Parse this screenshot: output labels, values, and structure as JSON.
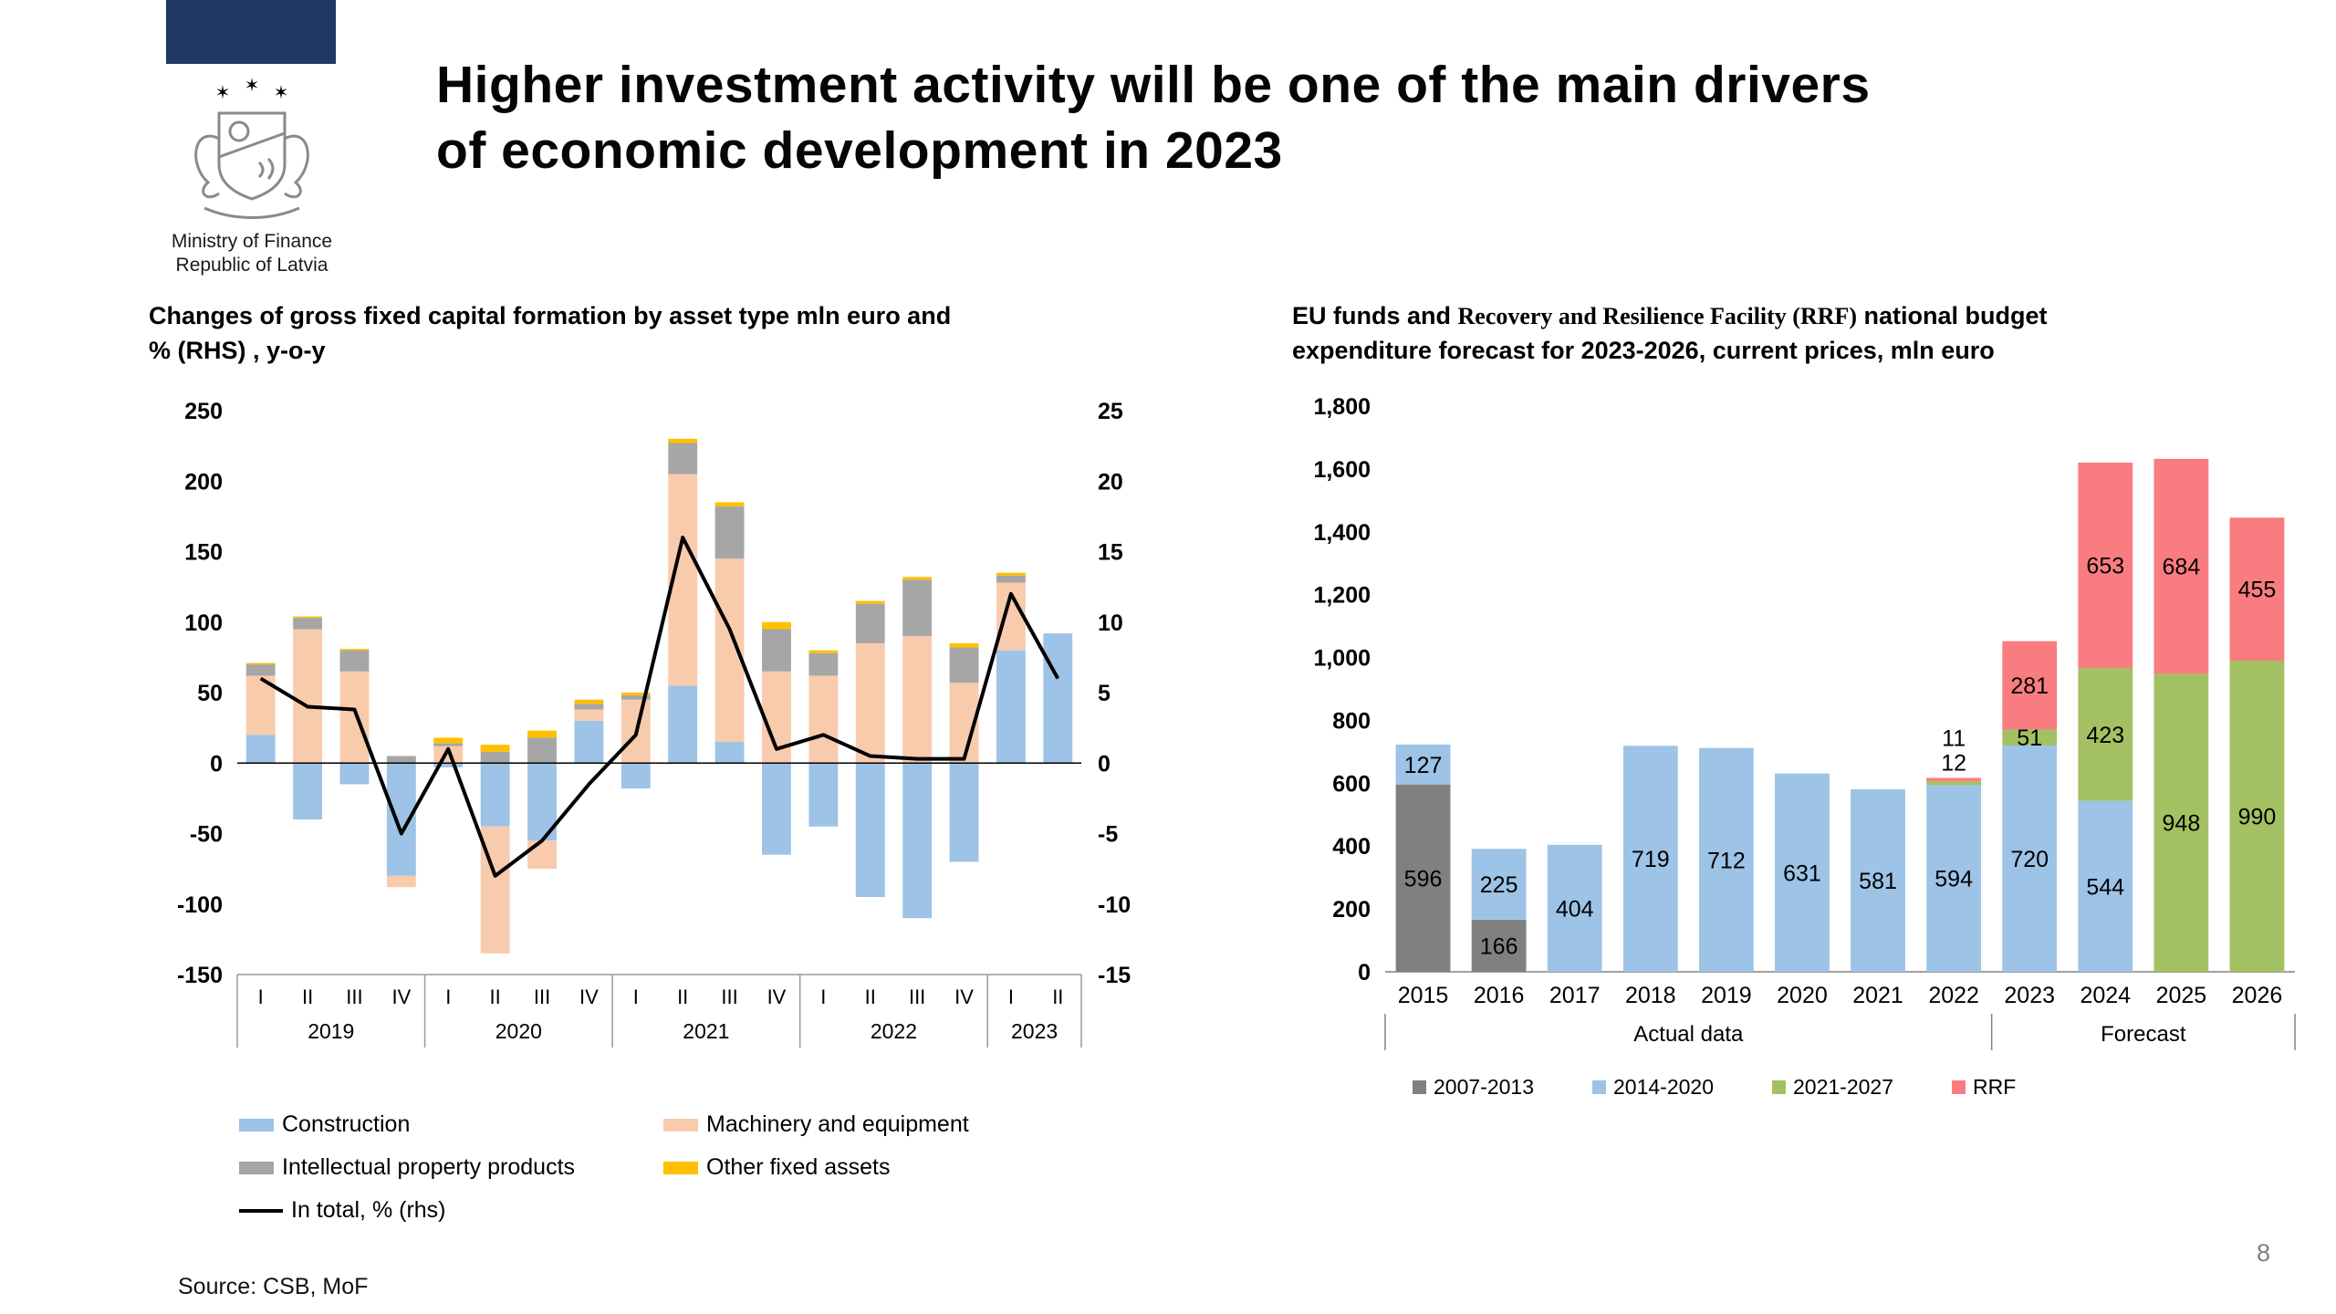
{
  "slide": {
    "title_line1": "Higher investment activity will be one of the main drivers",
    "title_line2": "of economic development in 2023",
    "ministry_line1": "Ministry of Finance",
    "ministry_line2": "Republic of Latvia",
    "flag_color": "#1F3864",
    "source": "Source: CSB, MoF",
    "page_number": "8"
  },
  "chart_data": [
    {
      "id": "gfcf-changes",
      "type": "bar",
      "subtype": "stacked-bar-with-line",
      "title_line1": "Changes of gross fixed capital formation by asset type mln euro and",
      "title_line2": "% (RHS) , y-o-y",
      "categories_quarters": [
        "I",
        "II",
        "III",
        "IV",
        "I",
        "II",
        "III",
        "IV",
        "I",
        "II",
        "III",
        "IV",
        "I",
        "II",
        "III",
        "IV",
        "I",
        "II"
      ],
      "year_groups": [
        {
          "label": "2019",
          "span": 4
        },
        {
          "label": "2020",
          "span": 4
        },
        {
          "label": "2021",
          "span": 4
        },
        {
          "label": "2022",
          "span": 4
        },
        {
          "label": "2023",
          "span": 2
        }
      ],
      "left_axis": {
        "min": -150,
        "max": 250,
        "step": 50,
        "unit": "mln euro"
      },
      "right_axis": {
        "min": -15,
        "max": 25,
        "step": 5,
        "unit": "%"
      },
      "grid": "off",
      "series": [
        {
          "name": "Construction",
          "color": "#9DC3E6",
          "values": [
            20,
            -40,
            -15,
            -80,
            -3,
            -45,
            -55,
            30,
            -18,
            55,
            15,
            -65,
            -45,
            -95,
            -110,
            -70,
            80,
            92
          ]
        },
        {
          "name": "Machinery and equipment",
          "color": "#F8CBAD",
          "values": [
            42,
            95,
            65,
            -8,
            12,
            -90,
            -20,
            8,
            45,
            150,
            130,
            65,
            62,
            85,
            90,
            57,
            48,
            0
          ]
        },
        {
          "name": "Intellectual property products",
          "color": "#A6A6A6",
          "values": [
            8,
            8,
            15,
            5,
            2,
            8,
            18,
            4,
            3,
            22,
            37,
            30,
            16,
            28,
            40,
            25,
            5,
            0
          ]
        },
        {
          "name": "Other fixed assets",
          "color": "#FFC000",
          "values": [
            1,
            1,
            1,
            0,
            4,
            5,
            5,
            3,
            2,
            3,
            3,
            5,
            2,
            2,
            2,
            3,
            2,
            0
          ]
        }
      ],
      "line_series": {
        "name": "In total, % (rhs)",
        "color": "#000000",
        "values": [
          6,
          4,
          3.8,
          -5,
          1,
          -8,
          -5.5,
          -1.5,
          2,
          16,
          9.5,
          1,
          2,
          0.5,
          0.3,
          0.3,
          12,
          6
        ]
      },
      "legend": [
        {
          "name": "Construction",
          "color": "#9DC3E6",
          "type": "rect"
        },
        {
          "name": "Machinery and equipment",
          "color": "#F8CBAD",
          "type": "rect"
        },
        {
          "name": "Intellectual property products",
          "color": "#A6A6A6",
          "type": "rect"
        },
        {
          "name": "Other fixed assets",
          "color": "#FFC000",
          "type": "rect"
        },
        {
          "name": "In total, % (rhs)",
          "color": "#000000",
          "type": "line"
        }
      ]
    },
    {
      "id": "eu-funds-forecast",
      "type": "bar",
      "subtype": "stacked-bar",
      "title_pre": "EU funds and ",
      "title_serif": "Recovery and Resilience Facility (RRF)",
      "title_post": "  national budget",
      "title_line2": "expenditure forecast for 2023-2026, current prices, mln euro",
      "categories": [
        "2015",
        "2016",
        "2017",
        "2018",
        "2019",
        "2020",
        "2021",
        "2022",
        "2023",
        "2024",
        "2025",
        "2026"
      ],
      "y_axis": {
        "min": 0,
        "max": 1800,
        "step": 200
      },
      "grid": "off",
      "series": [
        {
          "name": "2007-2013",
          "color": "#808080",
          "values": [
            596,
            166,
            0,
            0,
            0,
            0,
            0,
            0,
            0,
            0,
            0,
            0
          ]
        },
        {
          "name": "2014-2020",
          "color": "#9DC3E6",
          "values": [
            127,
            225,
            404,
            719,
            712,
            631,
            581,
            594,
            720,
            544,
            0,
            0
          ]
        },
        {
          "name": "2021-2027",
          "color": "#A3C162",
          "values": [
            0,
            0,
            0,
            0,
            0,
            0,
            0,
            12,
            51,
            423,
            948,
            990
          ]
        },
        {
          "name": "RRF",
          "color": "#F97D80",
          "values": [
            0,
            0,
            0,
            0,
            0,
            0,
            0,
            11,
            281,
            653,
            684,
            455
          ]
        }
      ],
      "group_labels": [
        {
          "label": "Actual data",
          "span": 8
        },
        {
          "label": "Forecast",
          "span": 4
        }
      ],
      "legend": [
        {
          "name": "2007-2013",
          "color": "#808080",
          "type": "rect"
        },
        {
          "name": "2014-2020",
          "color": "#9DC3E6",
          "type": "rect"
        },
        {
          "name": "2021-2027",
          "color": "#A3C162",
          "type": "rect"
        },
        {
          "name": "RRF",
          "color": "#F97D80",
          "type": "rect"
        }
      ]
    }
  ]
}
